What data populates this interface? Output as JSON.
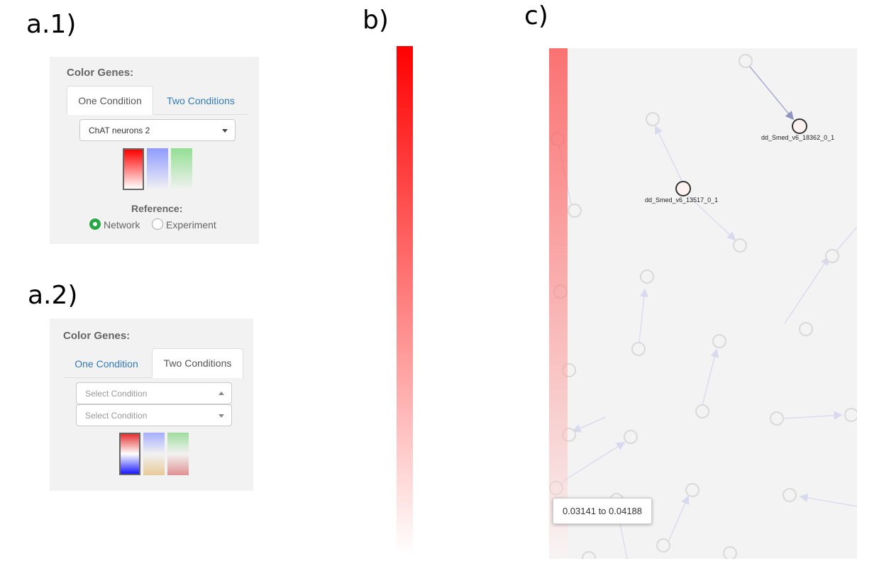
{
  "labels": {
    "a1": "a.1)",
    "a2": "a.2)",
    "b": "b)",
    "c": "c)"
  },
  "panel_a1": {
    "title": "Color Genes:",
    "tabs": [
      "One Condition",
      "Two Conditions"
    ],
    "active_tab": "One Condition",
    "select_value": "ChAT neurons 2",
    "swatches": [
      "red",
      "blue",
      "green"
    ],
    "selected_swatch": "red",
    "reference_label": "Reference:",
    "reference_options": [
      "Network",
      "Experiment"
    ],
    "reference_selected": "Network"
  },
  "panel_a2": {
    "title": "Color Genes:",
    "tabs": [
      "One Condition",
      "Two Conditions"
    ],
    "active_tab": "Two Conditions",
    "select1_placeholder": "Select Condition",
    "select2_placeholder": "Select Condition",
    "swatches": [
      "red-blue",
      "blue-tan",
      "green-red"
    ],
    "selected_swatch": "red-blue"
  },
  "colors": {
    "accent_link": "#337ab7",
    "radio_on": "#28a745",
    "scale_max": "#ff0000"
  },
  "network": {
    "labeled_nodes": [
      "dd_Smed_v6_18362_0_1",
      "dd_Smed_v6_13517_0_1"
    ],
    "tooltip": "0.03141 to 0.04188"
  }
}
